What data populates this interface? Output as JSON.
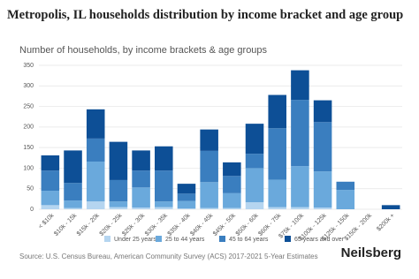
{
  "chart_data": {
    "type": "stacked_bar",
    "title": "Metropolis, IL households distribution by income bracket and age group",
    "subtitle": "Number of households, by income brackets & age groups",
    "source": "Source: U.S. Census Bureau, American Community Survey (ACS) 2017-2021 5-Year Estimates",
    "brand": "Neilsberg",
    "categories": [
      "< $10k",
      "$10k - 15k",
      "$15k - 20k",
      "$20k - 25k",
      "$25k - 30k",
      "$30k - 35k",
      "$35k - 40k",
      "$40k - 45k",
      "$45k - 50k",
      "$50k - 60k",
      "$60k - 75k",
      "$75k - 100k",
      "$100k - 125k",
      "$125k - 150k",
      "$150k - 200k",
      "$200k +"
    ],
    "series": [
      {
        "name": "Under 25 years",
        "color": "#b5d5f0",
        "values": [
          10,
          3,
          19,
          5,
          4,
          5,
          2,
          3,
          3,
          17,
          5,
          5,
          4,
          0,
          0,
          0
        ]
      },
      {
        "name": "25 to 44 years",
        "color": "#6aa9dc",
        "values": [
          35,
          18,
          97,
          14,
          49,
          14,
          18,
          63,
          36,
          83,
          67,
          100,
          88,
          47,
          0,
          0
        ]
      },
      {
        "name": "45 to 64 years",
        "color": "#3a7ebf",
        "values": [
          49,
          43,
          56,
          52,
          41,
          75,
          18,
          76,
          42,
          35,
          125,
          161,
          120,
          20,
          0,
          0
        ]
      },
      {
        "name": "65 years and over",
        "color": "#0d4f96",
        "values": [
          37,
          79,
          71,
          93,
          49,
          59,
          24,
          52,
          33,
          73,
          81,
          72,
          53,
          0,
          0,
          10
        ]
      }
    ],
    "ylim": [
      0,
      350
    ],
    "yticks": [
      0,
      50,
      100,
      150,
      200,
      250,
      300,
      350
    ],
    "grid": true
  }
}
